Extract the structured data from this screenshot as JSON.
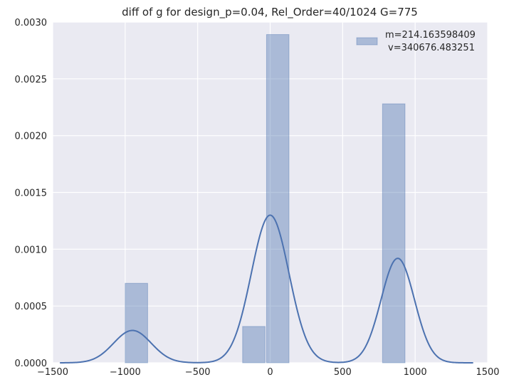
{
  "chart_data": {
    "type": "bar",
    "title": "diff of g for design_p=0.04, Rel_Order=40/1024 G=775",
    "xlabel": "",
    "ylabel": "",
    "xlim": [
      -1500,
      1500
    ],
    "ylim": [
      0,
      0.003
    ],
    "grid": true,
    "legend_placement": "top-right",
    "x_ticks": [
      -1500,
      -1000,
      -500,
      0,
      500,
      1000,
      1500
    ],
    "x_tick_labels": [
      "−1500",
      "−1000",
      "−500",
      "0",
      "500",
      "1000",
      "1500"
    ],
    "y_ticks": [
      0,
      0.0005,
      0.001,
      0.0015,
      0.002,
      0.0025,
      0.003
    ],
    "y_tick_labels": [
      "0.0000",
      "0.0005",
      "0.0010",
      "0.0015",
      "0.0020",
      "0.0025",
      "0.0030"
    ],
    "histogram_bins": [
      {
        "x0": -1000,
        "x1": -845,
        "value": 0.0007
      },
      {
        "x0": -190,
        "x1": -35,
        "value": 0.00032
      },
      {
        "x0": -25,
        "x1": 130,
        "value": 0.00289
      },
      {
        "x0": 775,
        "x1": 930,
        "value": 0.00228
      }
    ],
    "kde_components": [
      {
        "mean": -950,
        "sd": 130,
        "peak": 0.000285
      },
      {
        "mean": 0,
        "sd": 130,
        "peak": 0.0013
      },
      {
        "mean": 880,
        "sd": 115,
        "peak": 0.00092
      }
    ],
    "kde_range": [
      -1450,
      1400
    ],
    "legend_line1": "m=214.163598409",
    "legend_line2": "v=340676.483251",
    "colors": {
      "background": "#eaeaf2",
      "grid": "#ffffff",
      "bar_fill": "#4c72b0",
      "line": "#4c72b0"
    }
  }
}
